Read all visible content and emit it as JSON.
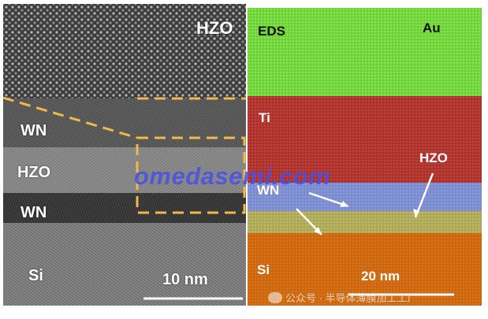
{
  "tem_panel": {
    "inset_label": "HZO",
    "layers": [
      "WN",
      "HZO",
      "WN",
      "Si"
    ],
    "scale_bar": "10 nm"
  },
  "eds_panel": {
    "title": "EDS",
    "labels": {
      "au": "Au",
      "ti": "Ti",
      "hzo": "HZO",
      "wn": "WN",
      "si": "Si"
    },
    "scale_bar": "20 nm"
  },
  "watermark": "omedasemi.com",
  "wechat_caption": "公众号 · 半导体薄膜加工工厂",
  "colors": {
    "dashed_box": "#f2b94a",
    "au": "#6fcf3a",
    "ti": "#a8312c",
    "wn": "#7c89c8",
    "hzo": "#a9a55a",
    "si": "#c9670f"
  }
}
